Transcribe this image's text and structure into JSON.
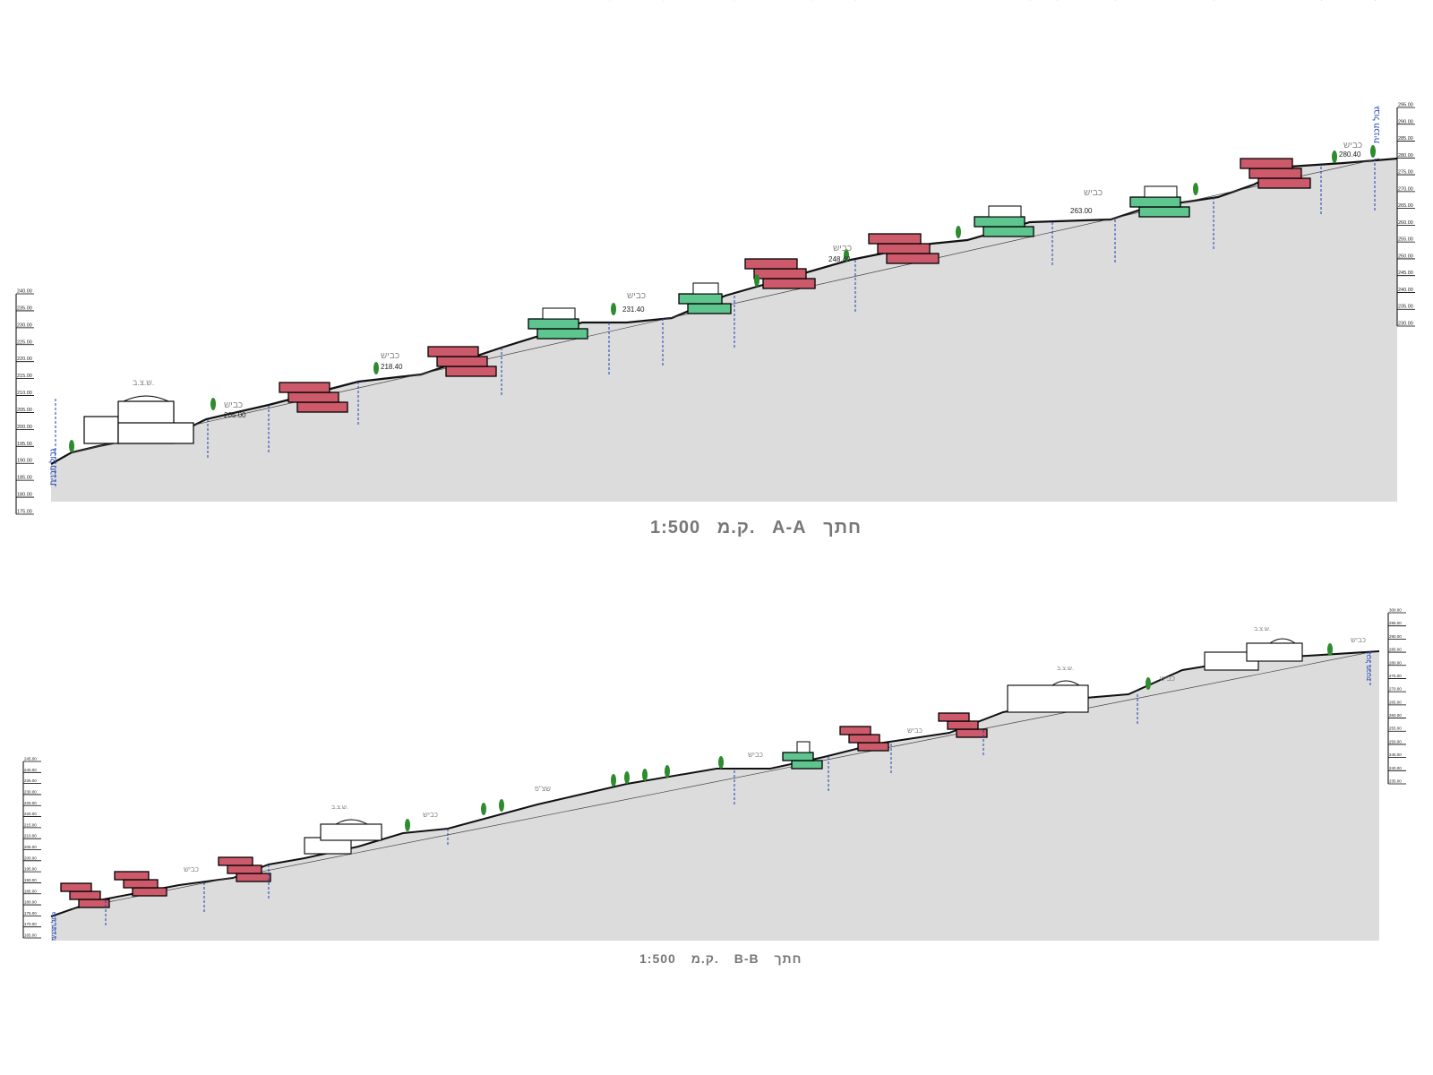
{
  "colors": {
    "ground": "#dcdcdc",
    "terrain_line": "#111111",
    "building_red": "#cc5a6a",
    "building_green": "#5ec58e",
    "building_white": "#ffffff",
    "tree": "#2e8b2e",
    "label": "#888888",
    "dim": "#1a3fb5"
  },
  "section_a": {
    "caption_title": "חתך",
    "caption_id": "A-A",
    "caption_scale_label": "ק.מ.",
    "caption_scale": "1:500",
    "axis_left": [
      "240.00",
      "235.00",
      "230.00",
      "225.00",
      "220.00",
      "215.00",
      "210.00",
      "205.00",
      "200.00",
      "195.00",
      "190.00",
      "185.00",
      "180.00",
      "175.00"
    ],
    "axis_right": [
      "295.00",
      "290.00",
      "285.00",
      "280.00",
      "275.00",
      "270.00",
      "265.00",
      "260.00",
      "255.00",
      "250.00",
      "245.00",
      "240.00",
      "235.00",
      "230.00"
    ],
    "road_label": "כביש",
    "public_label": "ש.צ.ב.",
    "edge_label": "גבול תכנית",
    "levels": [
      "205.00",
      "218.40",
      "231.40",
      "248.40",
      "263.00",
      "280.40"
    ]
  },
  "section_b": {
    "caption_title": "חתך",
    "caption_id": "B-B",
    "caption_scale_label": "ק.מ.",
    "caption_scale": "1:500",
    "axis_left": [
      "245.00",
      "240.00",
      "235.00",
      "230.00",
      "225.00",
      "220.00",
      "215.00",
      "210.00",
      "205.00",
      "200.00",
      "195.00",
      "190.00",
      "185.00",
      "180.00",
      "175.00",
      "170.00",
      "165.00"
    ],
    "axis_right": [
      "300.00",
      "295.00",
      "290.00",
      "285.00",
      "280.00",
      "275.00",
      "270.00",
      "265.00",
      "260.00",
      "255.00",
      "250.00",
      "245.00",
      "240.00",
      "235.00"
    ],
    "road_label": "כביש",
    "public_label": "ש.צ.ב.",
    "park_label": "שצ\"פ",
    "edge_label": "גבול תכנית"
  }
}
